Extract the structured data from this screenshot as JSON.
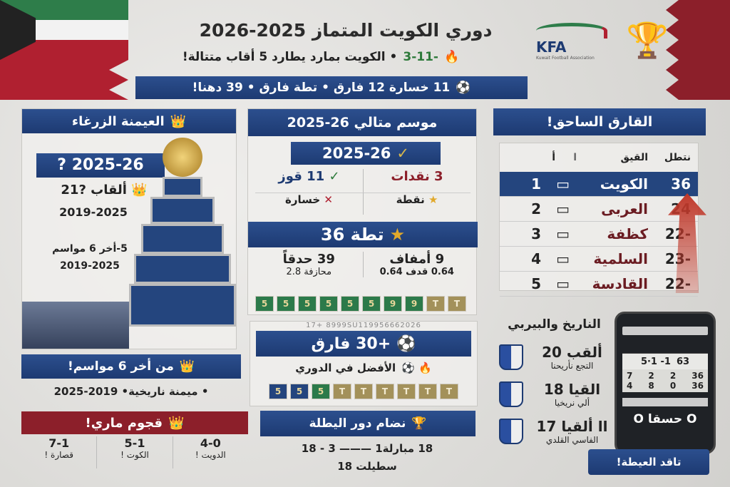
{
  "header": {
    "title": "دوري الكويت المتماز 2025-2026",
    "subtitle_score": "-3-11",
    "subtitle": "• الكويت بمارد يطارد 5 أقاب متتالة!",
    "banner": "11 خسارة  12 فارق • تطة فارق • 39 دهنا!",
    "logo": "KFA",
    "logo_caption": "Kuwait Football Association"
  },
  "left": {
    "header": "العيمنة الزرغاء",
    "season": "? 2025-26",
    "titles": "ألقاب ?21",
    "period1": "2019-2025",
    "last6": "5-أخر 6 مواسم",
    "period2": "2019-2025",
    "banner": "من أخر 6 مواسم!",
    "dominance": "• ميمنة ناريخية• 2019-2025",
    "attack_header": "قجوم ماري!",
    "scores": [
      {
        "score": "4-0",
        "label": "الدويت !"
      },
      {
        "score": "5-1",
        "label": "الكوت !"
      },
      {
        "score": "7-1",
        "label": "قصارة !"
      }
    ]
  },
  "middle": {
    "header": "موسم متالي 26-2025",
    "season": "2025-26",
    "draws": "3 نقدات",
    "wins": "11 قوز",
    "points_label": "نقطة",
    "loss_label": "خسارة",
    "points": "تطة 36",
    "clean": "9 أمفاف",
    "clean_sub": "0.64 قدف 0.64",
    "goals": "39 حدقاً",
    "goals_sub": "محازفة 2.8",
    "form1": [
      "5",
      "5",
      "5",
      "5",
      "5",
      "5",
      "9",
      "9",
      "T",
      "T"
    ],
    "digits": "17+ 8999SU119956662026",
    "diff": "+30 فارق",
    "best": "الأفضل في الدوري",
    "form2": [
      "5",
      "5",
      "5",
      "T",
      "T",
      "T",
      "T",
      "T",
      "T"
    ],
    "system_header": "نضام دور اليطلة",
    "system_line1": "18 مبارلة1 ——— 3 - 18",
    "system_line2": "سطيلت 18"
  },
  "right": {
    "header": "القارق الساحق!",
    "columns": [
      "نتطل",
      "القيق",
      "ا",
      "أ"
    ],
    "table": [
      {
        "pos": "1",
        "team": "الكويت",
        "pts": "36"
      },
      {
        "pos": "2",
        "team": "العربى",
        "pts": "24"
      },
      {
        "pos": "3",
        "team": "كظفة",
        "pts": "-22"
      },
      {
        "pos": "4",
        "team": "السلمية",
        "pts": "-23"
      },
      {
        "pos": "5",
        "team": "القادسة",
        "pts": "-22"
      }
    ],
    "history_header": "الناريخ والبيربي",
    "history": [
      {
        "title": "ألقب 20",
        "sub": "التجع نأريحنا"
      },
      {
        "title": "القيا 18",
        "sub": "ألي نريخيا"
      },
      {
        "title": "اا ألقيا 17",
        "sub": "الفاسي القلدي"
      }
    ],
    "phone": {
      "score": "5·1 -1",
      "val": "63",
      "row1": [
        "7",
        "2",
        "2",
        "36"
      ],
      "row2": [
        "4",
        "8",
        "0",
        "36"
      ],
      "bottom": "O حسقا O"
    },
    "footer": "تاقد العيطة!"
  },
  "colors": {
    "blue": "#1d3a72",
    "red": "#8c1f2a",
    "green": "#2c7a4a",
    "gold": "#c9a24a"
  }
}
